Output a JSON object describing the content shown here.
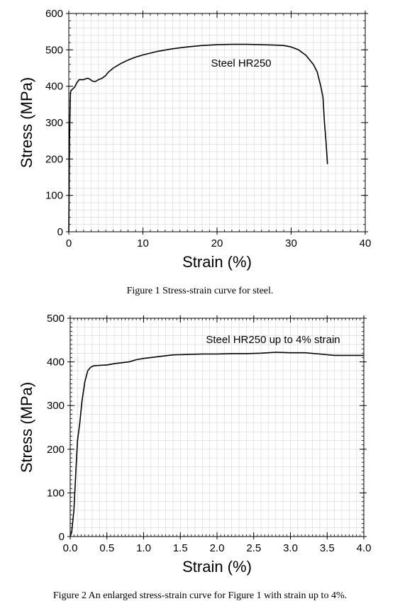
{
  "chart_data": [
    {
      "type": "line",
      "title": "",
      "xlabel": "Strain (%)",
      "ylabel": "Stress (MPa)",
      "xlim": [
        0,
        40
      ],
      "ylim": [
        0,
        600
      ],
      "xticks": [
        0,
        10,
        20,
        30,
        40
      ],
      "yticks": [
        0,
        100,
        200,
        300,
        400,
        500,
        600
      ],
      "grid": true,
      "annotation": "Steel HR250",
      "series": [
        {
          "x": [
            0,
            0.1,
            0.2,
            0.25,
            0.3,
            0.5,
            0.8,
            1.1,
            1.4,
            2.0,
            2.5,
            2.8,
            3.2,
            3.6,
            4.0,
            4.5,
            5.0,
            5.3,
            6,
            7,
            8,
            9,
            10,
            12,
            14,
            16,
            18,
            20,
            22,
            24,
            26,
            28,
            29,
            30,
            31,
            32,
            33,
            33.5,
            34,
            34.3,
            34.5,
            34.7,
            34.9
          ],
          "y": [
            0,
            250,
            370,
            385,
            388,
            392,
            398,
            410,
            418,
            418,
            422,
            420,
            414,
            413,
            418,
            422,
            430,
            438,
            450,
            462,
            472,
            480,
            486,
            496,
            503,
            508,
            512,
            514,
            515,
            515,
            514,
            513,
            512,
            508,
            500,
            485,
            460,
            440,
            400,
            370,
            300,
            250,
            186
          ]
        }
      ]
    },
    {
      "type": "line",
      "title": "",
      "xlabel": "Strain (%)",
      "ylabel": "Stress (MPa)",
      "xlim": [
        0,
        4
      ],
      "ylim": [
        0,
        500
      ],
      "xticks": [
        "0.0",
        "0.5",
        "1.0",
        "1.5",
        "2.0",
        "2.5",
        "3.0",
        "3.5",
        "4.0"
      ],
      "yticks": [
        0,
        100,
        200,
        300,
        400,
        500
      ],
      "grid": true,
      "annotation": "Steel HR250 up to 4% strain",
      "series": [
        {
          "x": [
            0,
            0.02,
            0.05,
            0.08,
            0.1,
            0.13,
            0.16,
            0.2,
            0.24,
            0.28,
            0.32,
            0.4,
            0.5,
            0.6,
            0.7,
            0.8,
            0.9,
            1.0,
            1.2,
            1.4,
            1.6,
            1.8,
            2.0,
            2.2,
            2.4,
            2.6,
            2.8,
            3.0,
            3.2,
            3.4,
            3.6,
            3.8,
            4.0
          ],
          "y": [
            0,
            10,
            60,
            160,
            220,
            260,
            310,
            355,
            380,
            388,
            391,
            392,
            393,
            396,
            398,
            400,
            405,
            408,
            412,
            416,
            417,
            418,
            418,
            419,
            419,
            420,
            422,
            421,
            421,
            418,
            415,
            415,
            415
          ]
        }
      ]
    }
  ],
  "captions": {
    "figure1": "Figure 1 Stress-strain curve for steel.",
    "figure2": "Figure 2 An enlarged stress-strain curve for Figure 1 with strain up to 4%."
  }
}
